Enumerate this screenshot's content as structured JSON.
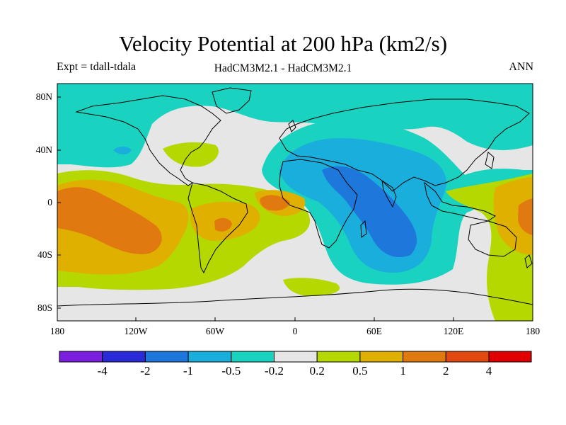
{
  "title": "Velocity Potential at 200 hPa (km2/s)",
  "left_label": "Expt = tdall-tdala",
  "center_label": "HadCM3M2.1 - HadCM3M2.1",
  "right_label": "ANN",
  "y_ticks": [
    "80N",
    "40N",
    "0",
    "40S",
    "80S"
  ],
  "x_ticks": [
    "180",
    "120W",
    "60W",
    "0",
    "60E",
    "120E",
    "180"
  ],
  "colorbar": {
    "labels": [
      "-4",
      "-2",
      "-1",
      "-0.5",
      "-0.2",
      "0.2",
      "0.5",
      "1",
      "2",
      "4"
    ],
    "colors": [
      "#7a1fe0",
      "#2a2ad6",
      "#1e78dc",
      "#1aaedd",
      "#1ad2c0",
      "#e6e6e6",
      "#b4d800",
      "#e0b000",
      "#e07a10",
      "#e04a10",
      "#e00000"
    ]
  },
  "map_fill_colors": {
    "neg_light": "#1ad2c0",
    "neg_mid": "#1aaedd",
    "neg_strong": "#1e78dc",
    "neutral": "#e6e6e6",
    "pos_light": "#b4d800",
    "pos_mid": "#e0b000",
    "pos_strong": "#e07a10"
  }
}
